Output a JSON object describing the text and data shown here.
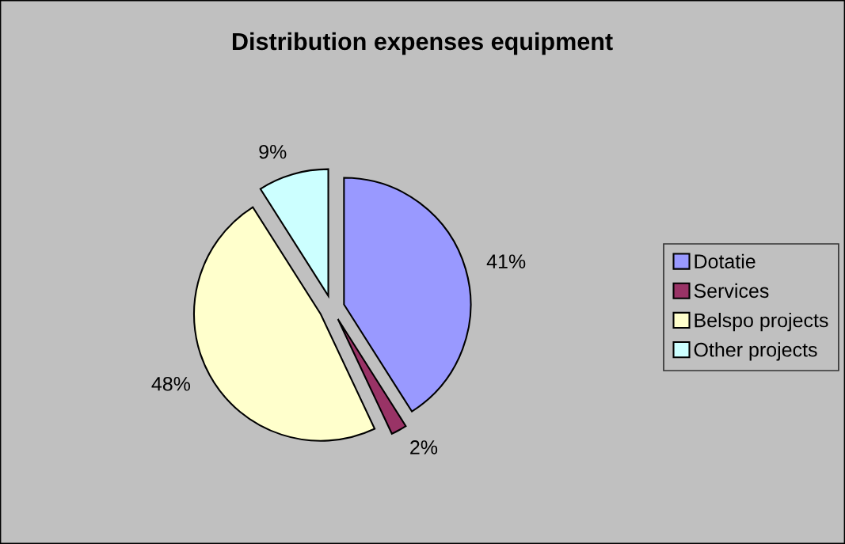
{
  "chart_data": {
    "type": "pie",
    "title": "Distribution expenses equipment",
    "categories": [
      "Dotatie",
      "Services",
      "Belspo projects",
      "Other projects"
    ],
    "values": [
      41,
      2,
      48,
      9
    ],
    "colors": [
      "#9999ff",
      "#993366",
      "#ffffcc",
      "#ccffff"
    ],
    "value_labels": [
      "41%",
      "2%",
      "48%",
      "9%"
    ],
    "legend": "right"
  }
}
